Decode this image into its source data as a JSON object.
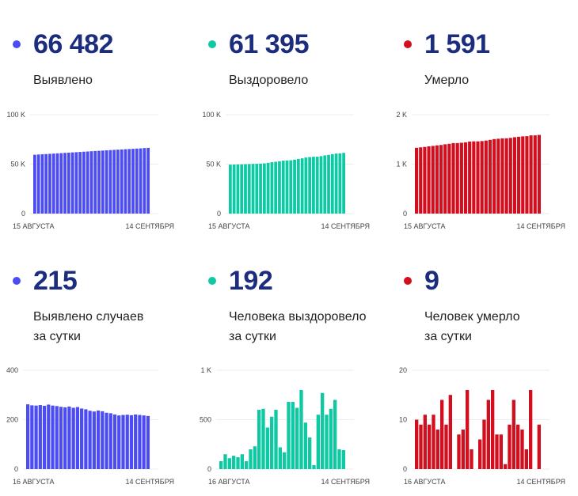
{
  "panels": [
    {
      "id": "detected-total",
      "value": "66 482",
      "label_lines": [
        "Выявлено"
      ],
      "color": "#4b4cf2"
    },
    {
      "id": "recovered-total",
      "value": "61 395",
      "label_lines": [
        "Выздоровело"
      ],
      "color": "#0fc9a4"
    },
    {
      "id": "deaths-total",
      "value": "1 591",
      "label_lines": [
        "Умерло"
      ],
      "color": "#d20f1f"
    },
    {
      "id": "detected-daily",
      "value": "215",
      "label_lines": [
        "Выявлено случаев",
        "за сутки"
      ],
      "color": "#4b4cf2"
    },
    {
      "id": "recovered-daily",
      "value": "192",
      "label_lines": [
        "Человека выздоровело",
        "за сутки"
      ],
      "color": "#0fc9a4"
    },
    {
      "id": "deaths-daily",
      "value": "9",
      "label_lines": [
        "Человек умерло",
        "за сутки"
      ],
      "color": "#d20f1f"
    }
  ],
  "chart_data": [
    {
      "type": "bar",
      "title": "Выявлено",
      "x_start_label": "15 АВГУСТА",
      "x_end_label": "14 СЕНТЯБРЯ",
      "ylim": [
        0,
        100000
      ],
      "yticks": [
        0,
        50000,
        100000
      ],
      "ytick_labels": [
        "0",
        "50 K",
        "100 K"
      ],
      "grid": true,
      "color": "#4b4cf2",
      "values": [
        59500,
        59750,
        59980,
        60200,
        60430,
        60670,
        60900,
        61130,
        61380,
        61620,
        61860,
        62100,
        62340,
        62580,
        62810,
        63050,
        63280,
        63510,
        63740,
        63970,
        64200,
        64420,
        64640,
        64860,
        65080,
        65300,
        65520,
        65740,
        65960,
        66270,
        66482
      ]
    },
    {
      "type": "bar",
      "title": "Выздоровело",
      "x_start_label": "15 АВГУСТА",
      "x_end_label": "14 СЕНТЯБРЯ",
      "ylim": [
        0,
        100000
      ],
      "yticks": [
        0,
        50000,
        100000
      ],
      "ytick_labels": [
        "0",
        "50 K",
        "100 K"
      ],
      "grid": true,
      "color": "#0fc9a4",
      "values": [
        49500,
        49580,
        49730,
        49840,
        49980,
        50100,
        50250,
        50330,
        50530,
        50760,
        51360,
        51970,
        52390,
        52920,
        53520,
        53740,
        53910,
        54590,
        55270,
        55890,
        56690,
        57160,
        57480,
        57520,
        58070,
        58840,
        59390,
        60000,
        60700,
        60900,
        61395
      ]
    },
    {
      "type": "bar",
      "title": "Умерло",
      "x_start_label": "15 АВГУСТА",
      "x_end_label": "14 СЕНТЯБРЯ",
      "ylim": [
        0,
        2000
      ],
      "yticks": [
        0,
        1000,
        2000
      ],
      "ytick_labels": [
        "0",
        "1 K",
        "2 K"
      ],
      "grid": true,
      "color": "#d20f1f",
      "values": [
        1330,
        1340,
        1349,
        1360,
        1369,
        1380,
        1388,
        1402,
        1411,
        1426,
        1426,
        1433,
        1441,
        1457,
        1461,
        1461,
        1467,
        1477,
        1491,
        1507,
        1514,
        1521,
        1522,
        1531,
        1545,
        1554,
        1562,
        1566,
        1582,
        1582,
        1591
      ]
    },
    {
      "type": "bar",
      "title": "Выявлено случаев за сутки",
      "x_start_label": "16 АВГУСТА",
      "x_end_label": "14 СЕНТЯБРЯ",
      "ylim": [
        0,
        400
      ],
      "yticks": [
        0,
        200,
        400
      ],
      "ytick_labels": [
        "0",
        "200",
        "400"
      ],
      "grid": true,
      "color": "#4b4cf2",
      "values": [
        262,
        258,
        257,
        259,
        256,
        261,
        257,
        255,
        252,
        250,
        253,
        248,
        251,
        245,
        242,
        236,
        233,
        237,
        234,
        228,
        226,
        221,
        217,
        219,
        220,
        218,
        221,
        219,
        217,
        215
      ]
    },
    {
      "type": "bar",
      "title": "Человека выздоровело за сутки",
      "x_start_label": "16 АВГУСТА",
      "x_end_label": "14 СЕНТЯБРЯ",
      "ylim": [
        0,
        1000
      ],
      "yticks": [
        0,
        500,
        1000
      ],
      "ytick_labels": [
        "0",
        "500",
        "1 K"
      ],
      "grid": true,
      "color": "#0fc9a4",
      "values": [
        80,
        150,
        110,
        135,
        120,
        150,
        80,
        200,
        230,
        600,
        610,
        420,
        530,
        600,
        220,
        170,
        680,
        680,
        620,
        800,
        470,
        320,
        40,
        550,
        770,
        550,
        610,
        700,
        200,
        192
      ]
    },
    {
      "type": "bar",
      "title": "Человек умерло за сутки",
      "x_start_label": "16 АВГУСТА",
      "x_end_label": "14 СЕНТЯБРЯ",
      "ylim": [
        0,
        20
      ],
      "yticks": [
        0,
        10,
        20
      ],
      "ytick_labels": [
        "0",
        "10",
        "20"
      ],
      "grid": true,
      "color": "#d20f1f",
      "values": [
        10,
        9,
        11,
        9,
        11,
        8,
        14,
        9,
        15,
        0,
        7,
        8,
        16,
        4,
        0,
        6,
        10,
        14,
        16,
        7,
        7,
        1,
        9,
        14,
        9,
        8,
        4,
        16,
        0,
        9
      ]
    }
  ]
}
